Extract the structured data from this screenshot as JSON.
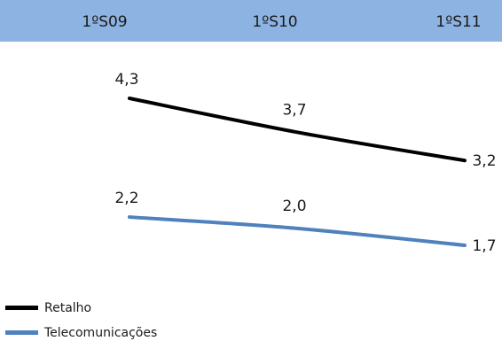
{
  "chart_data": {
    "type": "line",
    "categories": [
      "1ºS09",
      "1ºS10",
      "1ºS11"
    ],
    "series": [
      {
        "name": "Retalho",
        "values": [
          4.3,
          3.7,
          3.2
        ],
        "labels": [
          "4,3",
          "3,7",
          "3,2"
        ],
        "color": "#000000"
      },
      {
        "name": "Telecomunicações",
        "values": [
          2.2,
          2.0,
          1.7
        ],
        "labels": [
          "2,2",
          "2,0",
          "1,7"
        ],
        "color": "#4f81bd"
      }
    ],
    "header_band_color": "#8db3e2",
    "legend_position": "bottom-left",
    "grid": false,
    "title": "",
    "xlabel": "",
    "ylabel": ""
  }
}
